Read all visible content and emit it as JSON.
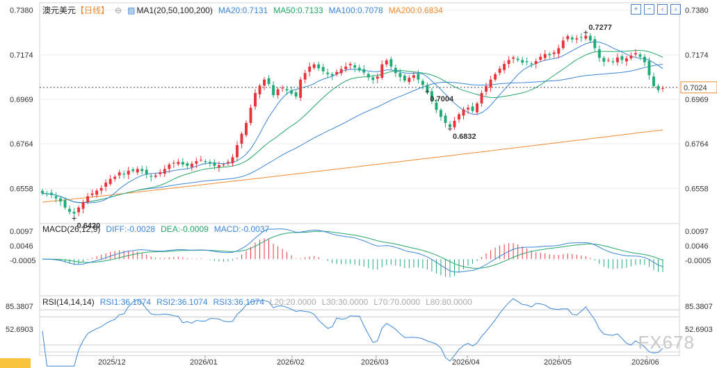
{
  "header": {
    "symbol": "澳元美元",
    "period": "【日线】",
    "ma_label": "MA1(20,50,100,200)",
    "ma20": "MA20:0.7131",
    "ma50": "MA50:0.7133",
    "ma100": "MA100:0.7078",
    "ma200": "MA200:0.6834"
  },
  "macd_legend": {
    "title": "MACD(26,12,9)",
    "diff": "DIFF:-0.0028",
    "dea": "DEA:-0.0009",
    "macd": "MACD:-0.0037"
  },
  "rsi_legend": {
    "title": "RSI(14,14,14)",
    "rsi1": "RSI1:36.1074",
    "rsi2": "RSI2:36.1074",
    "rsi3": "RSI3:36.1074",
    "l20": "L20:20.0000",
    "l30": "L30:30.0000",
    "l70": "L70:70.0000",
    "l80": "L80:80.0000"
  },
  "watermark": "FX678",
  "colors": {
    "up": "#e8333a",
    "down": "#1fab76",
    "ma20": "#3a86d8",
    "ma50": "#22a668",
    "ma100": "#3a86d8",
    "ma200": "#f08a30",
    "diff": "#3a86d8",
    "dea": "#22a668",
    "rsi": "#3a86d8",
    "current_price": "#f08a30"
  },
  "chart_data": [
    {
      "type": "candlestick",
      "title": "澳元美元【日线】",
      "x_ticks": [
        "2025/12",
        "2026/01",
        "2026/02",
        "2026/03",
        "2026/04",
        "2026/05",
        "2026/06"
      ],
      "y_ticks": [
        "0.7380",
        "0.7174",
        "0.6969",
        "0.6764",
        "0.6558"
      ],
      "ylim": [
        0.6396,
        0.7414
      ],
      "current_price": "0.7024",
      "annotations": [
        {
          "label": "0.6420",
          "value": 0.642,
          "type": "low"
        },
        {
          "label": "0.6832",
          "value": 0.6832,
          "type": "low"
        },
        {
          "label": "0.7277",
          "value": 0.7277,
          "type": "high"
        },
        {
          "label": "0.7004",
          "value": 0.7004,
          "type": "low"
        }
      ],
      "close_series": [
        0.6535,
        0.6532,
        0.6528,
        0.6512,
        0.6498,
        0.647,
        0.645,
        0.6442,
        0.647,
        0.6495,
        0.6522,
        0.6535,
        0.6548,
        0.656,
        0.6585,
        0.6602,
        0.6612,
        0.6632,
        0.6622,
        0.664,
        0.6638,
        0.6648,
        0.6638,
        0.6622,
        0.6612,
        0.6618,
        0.6632,
        0.6648,
        0.6668,
        0.6676,
        0.668,
        0.6668,
        0.6662,
        0.6672,
        0.6684,
        0.669,
        0.668,
        0.6672,
        0.6662,
        0.6665,
        0.6668,
        0.668,
        0.6702,
        0.6758,
        0.681,
        0.686,
        0.693,
        0.6998,
        0.7032,
        0.706,
        0.704,
        0.6988,
        0.7015,
        0.7022,
        0.701,
        0.6995,
        0.6982,
        0.706,
        0.709,
        0.712,
        0.713,
        0.7112,
        0.7098,
        0.7085,
        0.7078,
        0.7095,
        0.7108,
        0.712,
        0.7132,
        0.7115,
        0.7102,
        0.7092,
        0.707,
        0.7058,
        0.7074,
        0.713,
        0.7148,
        0.712,
        0.709,
        0.7072,
        0.7055,
        0.7068,
        0.708,
        0.706,
        0.7035,
        0.7,
        0.696,
        0.692,
        0.6888,
        0.686,
        0.684,
        0.687,
        0.69,
        0.6922,
        0.693,
        0.6915,
        0.695,
        0.6998,
        0.703,
        0.706,
        0.7085,
        0.711,
        0.7132,
        0.715,
        0.7162,
        0.715,
        0.7138,
        0.714,
        0.7132,
        0.7145,
        0.7165,
        0.7178,
        0.7172,
        0.7185,
        0.7205,
        0.724,
        0.726,
        0.7245,
        0.725,
        0.7255,
        0.7262,
        0.724,
        0.7205,
        0.716,
        0.7142,
        0.715,
        0.714,
        0.7162,
        0.715,
        0.7158,
        0.717,
        0.7182,
        0.7165,
        0.714,
        0.708,
        0.703,
        0.7012,
        0.702
      ],
      "indicators": [
        "MA20",
        "MA50",
        "MA100",
        "MA200"
      ]
    },
    {
      "type": "bar+line",
      "title": "MACD(26,12,9)",
      "y_ticks": [
        "0.0097",
        "0.0046",
        "-0.0005"
      ],
      "ylim": [
        -0.0128,
        0.0124
      ],
      "series_names": [
        "DIFF",
        "DEA",
        "MACD"
      ]
    },
    {
      "type": "line",
      "title": "RSI(14,14,14)",
      "y_ticks": [
        "85.3807",
        "52.6903"
      ],
      "ylim": [
        15,
        100
      ],
      "series_names": [
        "RSI1",
        "RSI2",
        "RSI3"
      ]
    }
  ]
}
